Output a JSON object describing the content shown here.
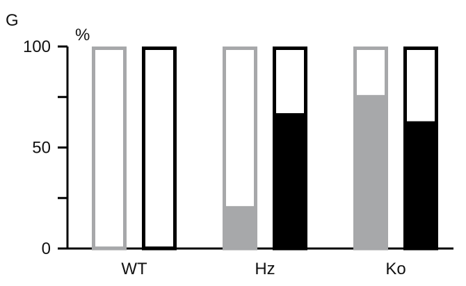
{
  "panel_label": "G",
  "colors": {
    "gray": "#a7a8aa",
    "black": "#000000",
    "axis": "#000000"
  },
  "chart_data": {
    "type": "bar",
    "title": "",
    "xlabel": "",
    "ylabel": "%",
    "ylim": [
      0,
      100
    ],
    "y_ticks_major": [
      0,
      50,
      100
    ],
    "y_ticks_minor": [
      25,
      75
    ],
    "categories": [
      "WT",
      "Hz",
      "Ko"
    ],
    "series": [
      {
        "color_role": "gray",
        "values": [
          1,
          21,
          76
        ]
      },
      {
        "color_role": "black",
        "values": [
          1,
          67,
          63
        ]
      }
    ],
    "bar_style": "outlined 100% column with filled portion from baseline",
    "grid": false,
    "legend": "none"
  }
}
